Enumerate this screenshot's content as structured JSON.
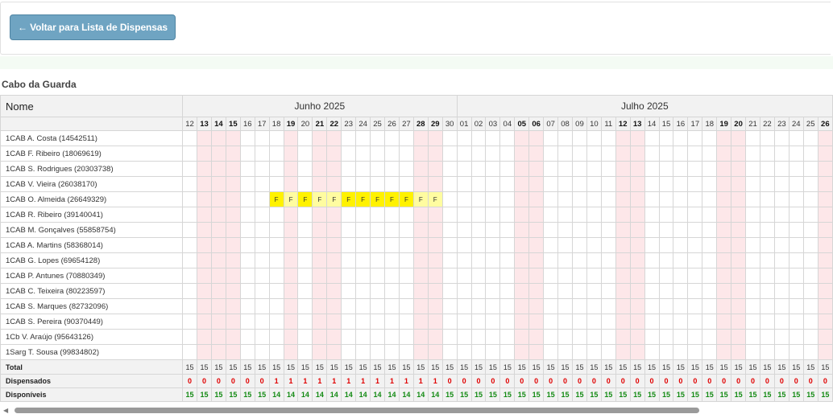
{
  "back_button": {
    "label": "← Voltar para Lista de Dispensas"
  },
  "group_title": "Cabo da Guarda",
  "table": {
    "name_header": "Nome",
    "months": [
      {
        "label": "Junho 2025",
        "days": [
          "12",
          "13",
          "14",
          "15",
          "16",
          "17",
          "18",
          "19",
          "20",
          "21",
          "22",
          "23",
          "24",
          "25",
          "26",
          "27",
          "28",
          "29",
          "30"
        ],
        "weekend": [
          false,
          true,
          true,
          true,
          false,
          false,
          false,
          true,
          false,
          true,
          true,
          false,
          false,
          false,
          false,
          false,
          true,
          true,
          false
        ]
      },
      {
        "label": "Julho 2025",
        "days": [
          "01",
          "02",
          "03",
          "04",
          "05",
          "06",
          "07",
          "08",
          "09",
          "10",
          "11",
          "12",
          "13",
          "14",
          "15",
          "16",
          "17",
          "18",
          "19",
          "20",
          "21",
          "22",
          "23",
          "24",
          "25",
          "26"
        ],
        "weekend": [
          false,
          false,
          false,
          false,
          true,
          true,
          false,
          false,
          false,
          false,
          false,
          true,
          true,
          false,
          false,
          false,
          false,
          false,
          true,
          true,
          false,
          false,
          false,
          false,
          false,
          true
        ]
      }
    ],
    "rows": [
      {
        "name": "1CAB A. Costa (14542511)"
      },
      {
        "name": "1CAB F. Ribeiro (18069619)"
      },
      {
        "name": "1CAB S. Rodrigues (20303738)"
      },
      {
        "name": "1CAB V. Vieira (26038170)"
      },
      {
        "name": "1CAB O. Almeida (26649329)",
        "marks": [
          [
            6,
            "F",
            "f1"
          ],
          [
            7,
            "F",
            "f2"
          ],
          [
            8,
            "F",
            "f1"
          ],
          [
            9,
            "F",
            "f2"
          ],
          [
            10,
            "F",
            "f2"
          ],
          [
            11,
            "F",
            "f1"
          ],
          [
            12,
            "F",
            "f1"
          ],
          [
            13,
            "F",
            "f1"
          ],
          [
            14,
            "F",
            "f1"
          ],
          [
            15,
            "F",
            "f1"
          ],
          [
            16,
            "F",
            "f2"
          ],
          [
            17,
            "F",
            "f2"
          ]
        ]
      },
      {
        "name": "1CAB R. Ribeiro (39140041)"
      },
      {
        "name": "1CAB M. Gonçalves (55858754)"
      },
      {
        "name": "1CAB A. Martins (58368014)"
      },
      {
        "name": "1CAB G. Lopes (69654128)"
      },
      {
        "name": "1CAB P. Antunes (70880349)"
      },
      {
        "name": "1CAB C. Teixeira (80223597)"
      },
      {
        "name": "1CAB S. Marques (82732096)"
      },
      {
        "name": "1CAB S. Pereira (90370449)"
      },
      {
        "name": "1Cb V. Araújo (95643126)"
      },
      {
        "name": "1Sarg T. Sousa (99834802)"
      }
    ],
    "summary": {
      "total_label": "Total",
      "total": [
        "15",
        "15",
        "15",
        "15",
        "15",
        "15",
        "15",
        "15",
        "15",
        "15",
        "15",
        "15",
        "15",
        "15",
        "15",
        "15",
        "15",
        "15",
        "15",
        "15",
        "15",
        "15",
        "15",
        "15",
        "15",
        "15",
        "15",
        "15",
        "15",
        "15",
        "15",
        "15",
        "15",
        "15",
        "15",
        "15",
        "15",
        "15",
        "15",
        "15",
        "15",
        "15",
        "15",
        "15",
        "15"
      ],
      "dispensed_label": "Dispensados",
      "dispensed": [
        "0",
        "0",
        "0",
        "0",
        "0",
        "0",
        "1",
        "1",
        "1",
        "1",
        "1",
        "1",
        "1",
        "1",
        "1",
        "1",
        "1",
        "1",
        "0",
        "0",
        "0",
        "0",
        "0",
        "0",
        "0",
        "0",
        "0",
        "0",
        "0",
        "0",
        "0",
        "0",
        "0",
        "0",
        "0",
        "0",
        "0",
        "0",
        "0",
        "0",
        "0",
        "0",
        "0",
        "0",
        "0"
      ],
      "available_label": "Disponíveis",
      "available": [
        "15",
        "15",
        "15",
        "15",
        "15",
        "15",
        "14",
        "14",
        "14",
        "14",
        "14",
        "14",
        "14",
        "14",
        "14",
        "14",
        "14",
        "14",
        "15",
        "15",
        "15",
        "15",
        "15",
        "15",
        "15",
        "15",
        "15",
        "15",
        "15",
        "15",
        "15",
        "15",
        "15",
        "15",
        "15",
        "15",
        "15",
        "15",
        "15",
        "15",
        "15",
        "15",
        "15",
        "15",
        "15"
      ]
    }
  },
  "colors": {
    "weekend": "#fde7e9",
    "mark_strong": "#fff200",
    "mark_light": "#fffca0",
    "dispensed": "#e00000",
    "available": "#138a13",
    "button": "#6fa4c2"
  }
}
